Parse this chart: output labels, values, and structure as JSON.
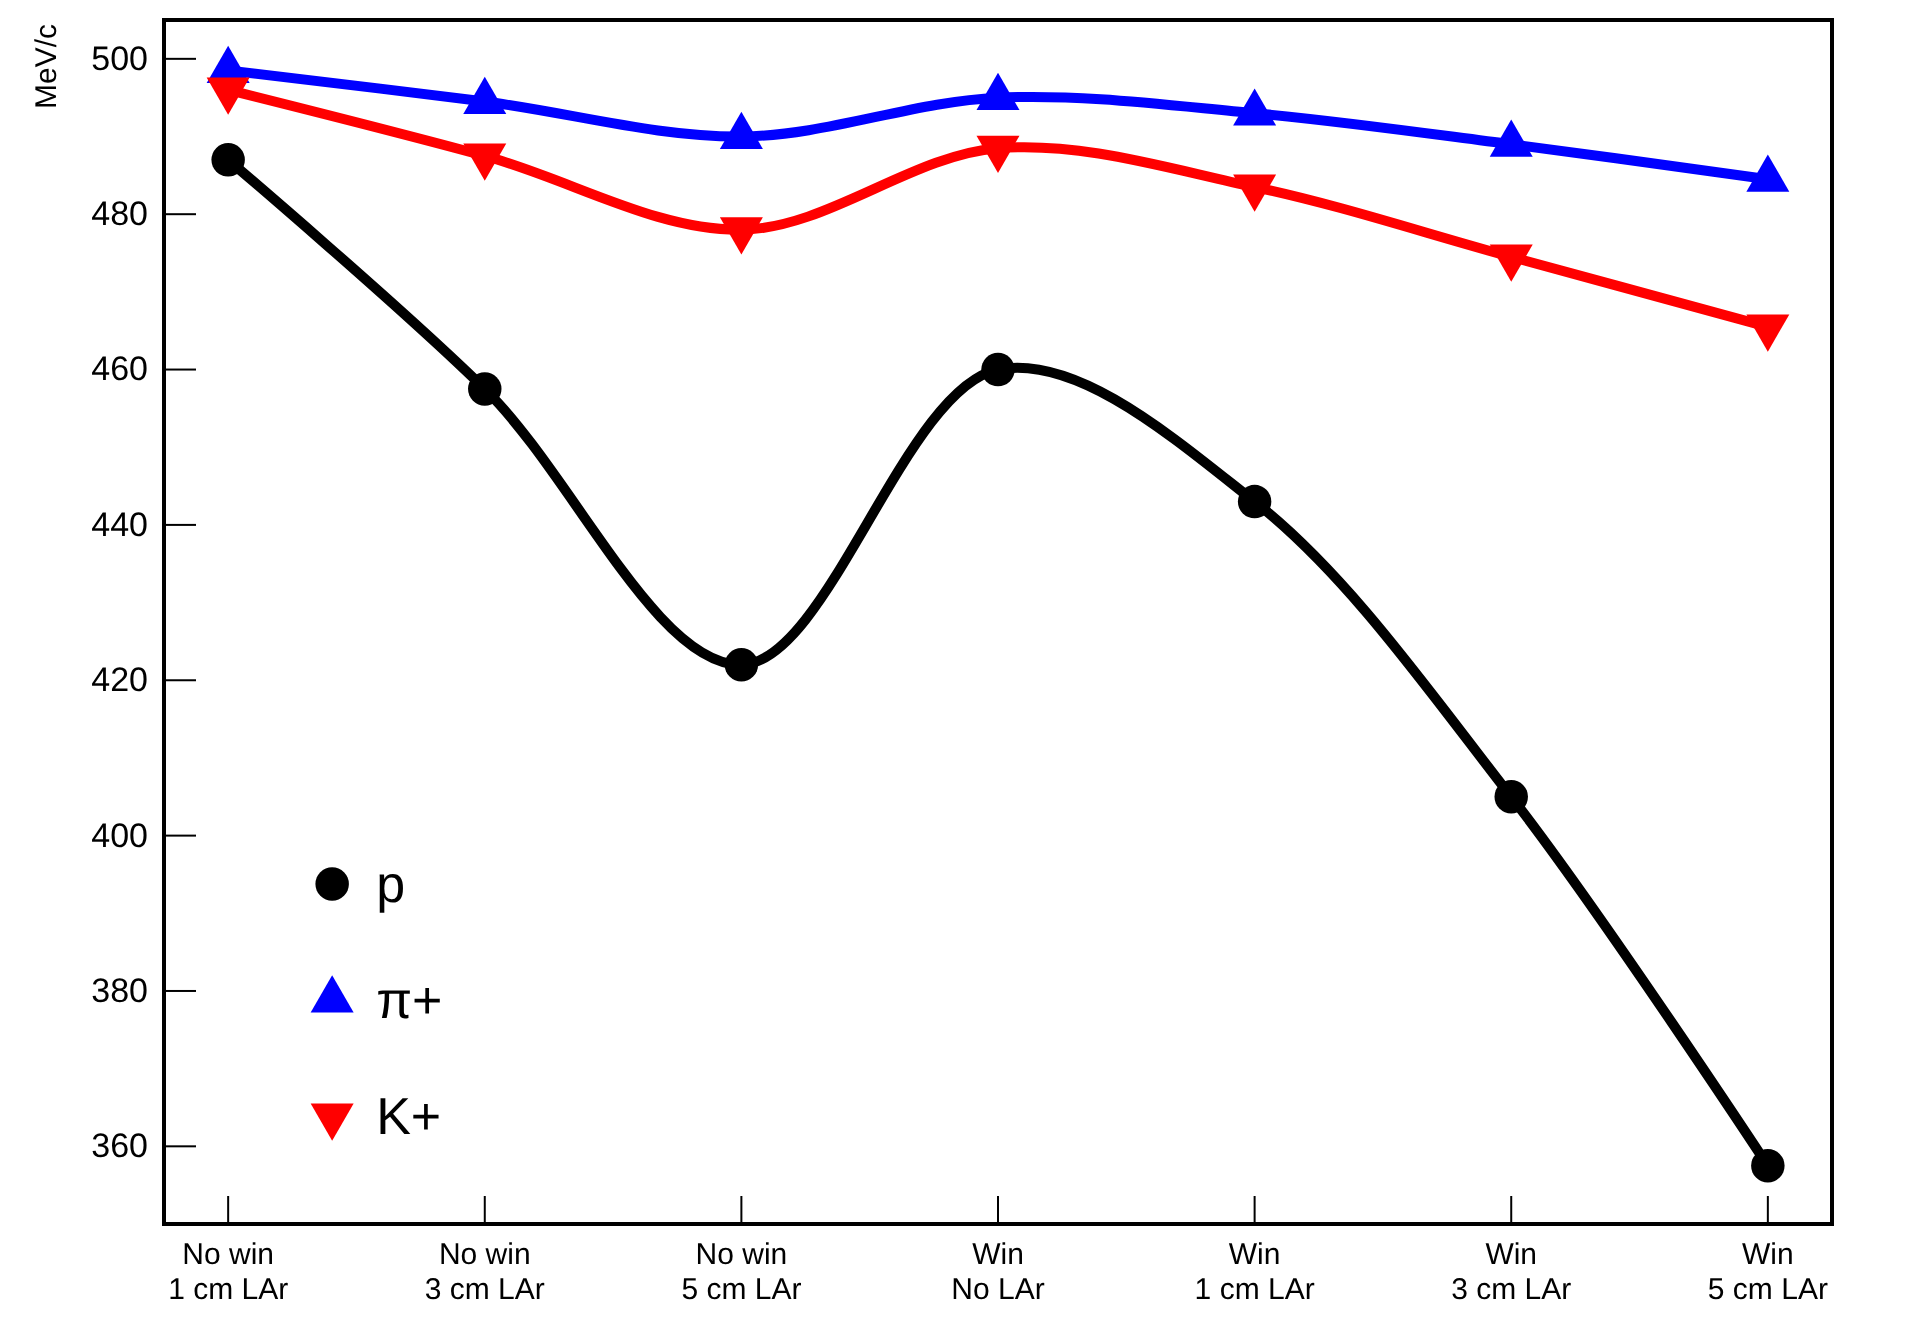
{
  "chart_data": {
    "type": "line",
    "ylabel": "MeV/c",
    "categories": [
      "No win\n1 cm LAr",
      "No win\n3 cm LAr",
      "No win\n5 cm LAr",
      "Win\nNo LAr",
      "Win\n1 cm LAr",
      "Win\n3 cm LAr",
      "Win\n5 cm LAr"
    ],
    "series": [
      {
        "name": "p",
        "color": "#000000",
        "marker": "circle",
        "values": [
          487,
          457.5,
          422,
          460,
          443,
          405,
          357.5
        ]
      },
      {
        "name": "π+",
        "color": "#0000ff",
        "marker": "triangle",
        "values": [
          498.5,
          494.5,
          490,
          495,
          493,
          489,
          484.5
        ]
      },
      {
        "name": "K+",
        "color": "#ff0000",
        "marker": "triangle-down",
        "values": [
          496,
          487.5,
          478,
          488.5,
          483.5,
          474.5,
          465.5
        ]
      }
    ],
    "ylim": [
      350,
      505
    ],
    "yticks": [
      360,
      380,
      400,
      420,
      440,
      460,
      480,
      500
    ],
    "grid": false,
    "legend": "bottom left",
    "line_style": "solid"
  }
}
